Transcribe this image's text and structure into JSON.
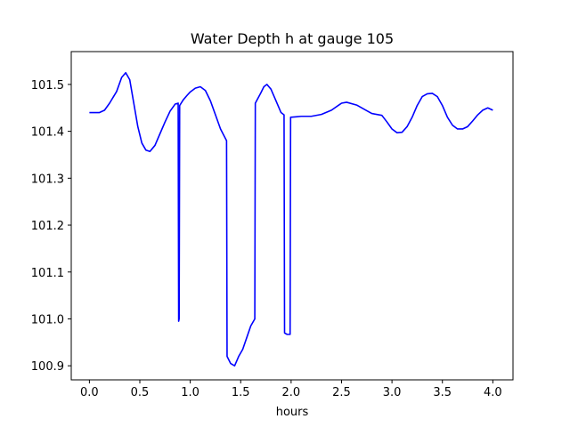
{
  "chart_data": {
    "type": "line",
    "title": "Water Depth h at gauge 105",
    "xlabel": "hours",
    "ylabel": "",
    "xlim": [
      -0.18,
      4.2
    ],
    "ylim": [
      100.87,
      101.57
    ],
    "xticks": [
      0.0,
      0.5,
      1.0,
      1.5,
      2.0,
      2.5,
      3.0,
      3.5,
      4.0
    ],
    "xtick_labels": [
      "0.0",
      "0.5",
      "1.0",
      "1.5",
      "2.0",
      "2.5",
      "3.0",
      "3.5",
      "4.0"
    ],
    "yticks": [
      100.9,
      101.0,
      101.1,
      101.2,
      101.3,
      101.4,
      101.5
    ],
    "ytick_labels": [
      "100.9",
      "101.0",
      "101.1",
      "101.2",
      "101.3",
      "101.4",
      "101.5"
    ],
    "grid": false,
    "series": [
      {
        "name": "",
        "color": "#0000ff",
        "x": [
          0.0,
          0.1,
          0.15,
          0.2,
          0.27,
          0.32,
          0.36,
          0.4,
          0.44,
          0.48,
          0.52,
          0.56,
          0.6,
          0.65,
          0.7,
          0.75,
          0.8,
          0.85,
          0.88,
          0.885,
          0.89,
          0.895,
          0.93,
          0.97,
          1.0,
          1.05,
          1.1,
          1.15,
          1.2,
          1.25,
          1.3,
          1.36,
          1.365,
          1.4,
          1.44,
          1.48,
          1.52,
          1.56,
          1.6,
          1.64,
          1.645,
          1.7,
          1.73,
          1.76,
          1.8,
          1.85,
          1.9,
          1.93,
          1.935,
          1.96,
          1.99,
          1.995,
          2.05,
          2.1,
          2.2,
          2.3,
          2.4,
          2.5,
          2.55,
          2.65,
          2.75,
          2.8,
          2.9,
          2.95,
          3.0,
          3.05,
          3.1,
          3.15,
          3.2,
          3.25,
          3.3,
          3.35,
          3.4,
          3.45,
          3.5,
          3.55,
          3.6,
          3.65,
          3.7,
          3.75,
          3.8,
          3.85,
          3.9,
          3.95,
          4.0
        ],
        "y": [
          101.44,
          101.44,
          101.445,
          101.46,
          101.485,
          101.515,
          101.525,
          101.51,
          101.46,
          101.41,
          101.375,
          101.36,
          101.357,
          101.37,
          101.395,
          101.42,
          101.443,
          101.458,
          101.46,
          100.995,
          101.0,
          101.455,
          101.467,
          101.477,
          101.484,
          101.492,
          101.495,
          101.487,
          101.465,
          101.435,
          101.405,
          101.38,
          100.92,
          100.905,
          100.9,
          100.92,
          100.935,
          100.96,
          100.985,
          101.0,
          101.46,
          101.482,
          101.495,
          101.5,
          101.49,
          101.465,
          101.44,
          101.435,
          100.97,
          100.967,
          100.967,
          101.43,
          101.431,
          101.432,
          101.432,
          101.436,
          101.445,
          101.46,
          101.462,
          101.456,
          101.444,
          101.438,
          101.434,
          101.42,
          101.405,
          101.397,
          101.398,
          101.41,
          101.43,
          101.455,
          101.474,
          101.48,
          101.481,
          101.474,
          101.455,
          101.43,
          101.413,
          101.405,
          101.405,
          101.41,
          101.422,
          101.435,
          101.445,
          101.45,
          101.445
        ]
      }
    ]
  }
}
